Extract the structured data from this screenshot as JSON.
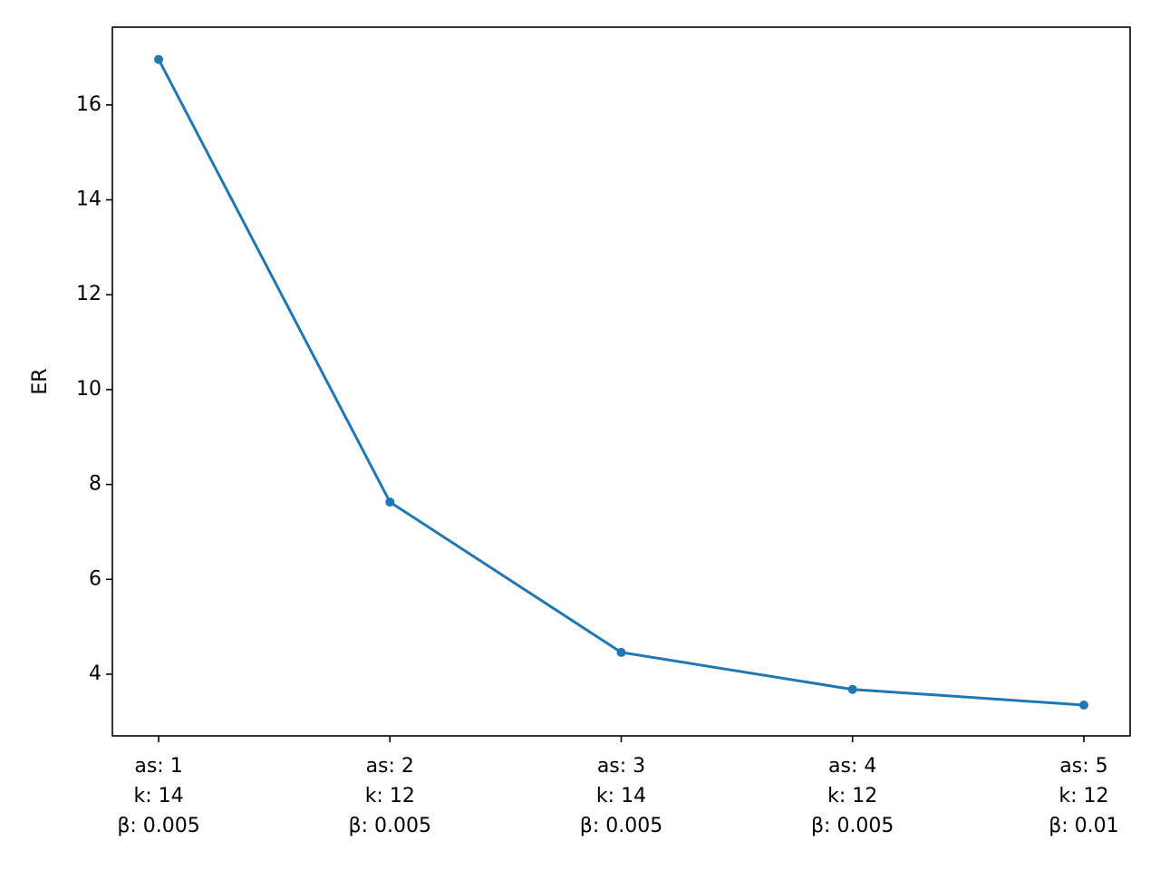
{
  "chart_data": {
    "type": "line",
    "y_label": "ER",
    "categories": [
      [
        "as: 1",
        "k: 14",
        "β: 0.005"
      ],
      [
        "as: 2",
        "k: 12",
        "β: 0.005"
      ],
      [
        "as: 3",
        "k: 14",
        "β: 0.005"
      ],
      [
        "as: 4",
        "k: 12",
        "β: 0.005"
      ],
      [
        "as: 5",
        "k: 12",
        "β: 0.01"
      ]
    ],
    "values": [
      16.96,
      7.63,
      4.46,
      3.68,
      3.35
    ],
    "color": "#1f77b4",
    "ylim": [
      2.7,
      17.64
    ],
    "yticks": [
      4,
      6,
      8,
      10,
      12,
      14,
      16
    ],
    "grid": false
  }
}
